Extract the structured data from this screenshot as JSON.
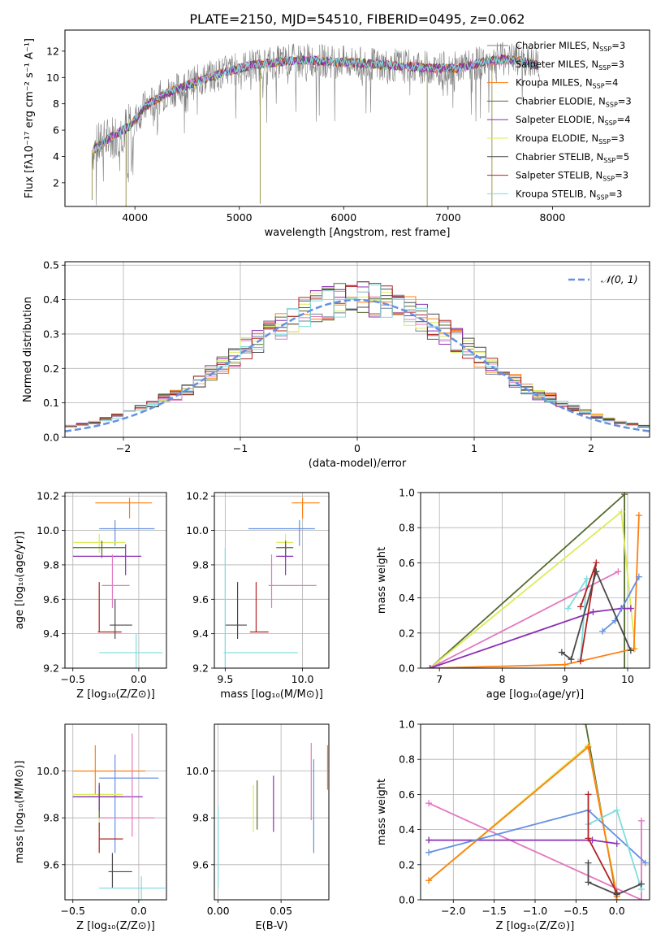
{
  "figure_title": "PLATE=2150, MJD=54510, FIBERID=0495, z=0.062",
  "colors": [
    "#708090",
    "#e377c2",
    "#ff7f0e",
    "#556b2f",
    "#8b2fb4",
    "#dceb5a",
    "#4a4a4a",
    "#b22222",
    "#7fdcdf",
    "#6490e4"
  ],
  "chart_data": [
    {
      "id": "spectrum",
      "type": "line",
      "xlabel": "wavelength [Angstrom, rest frame]",
      "ylabel": "Flux [fλ10⁻¹⁷ erg cm⁻² s⁻¹ A⁻¹]",
      "xlim": [
        3330,
        8930
      ],
      "ylim": [
        0.2,
        13.6
      ],
      "xticks": [
        4000,
        5000,
        6000,
        7000,
        8000
      ],
      "yticks": [
        2,
        4,
        6,
        8,
        10,
        12
      ],
      "continuum_x": [
        3600,
        3800,
        3950,
        4100,
        4300,
        4500,
        4700,
        4900,
        5100,
        5300,
        5500,
        5700,
        5900,
        6100,
        6300,
        6500,
        6700,
        6900,
        7100,
        7300,
        7500,
        7700,
        7900
      ],
      "continuum_y": [
        4.5,
        5.6,
        6.3,
        7.8,
        8.8,
        9.4,
        10.0,
        10.5,
        10.9,
        11.1,
        11.3,
        11.3,
        11.2,
        11.1,
        11.0,
        10.9,
        10.8,
        10.7,
        10.7,
        11.1,
        11.4,
        11.3,
        10.8
      ],
      "legend": [
        {
          "label": "Chabrier MILES, N",
          "sub": "SSP",
          "val": "=3"
        },
        {
          "label": "Salpeter MILES, N",
          "sub": "SSP",
          "val": "=3"
        },
        {
          "label": "Kroupa MILES, N",
          "sub": "SSP",
          "val": "=4"
        },
        {
          "label": "Chabrier ELODIE, N",
          "sub": "SSP",
          "val": "=3"
        },
        {
          "label": "Salpeter ELODIE, N",
          "sub": "SSP",
          "val": "=4"
        },
        {
          "label": "Kroupa ELODIE, N",
          "sub": "SSP",
          "val": "=3"
        },
        {
          "label": "Chabrier STELIB, N",
          "sub": "SSP",
          "val": "=5"
        },
        {
          "label": "Salpeter STELIB, N",
          "sub": "SSP",
          "val": "=3"
        },
        {
          "label": "Kroupa STELIB, N",
          "sub": "SSP",
          "val": "=3"
        }
      ],
      "legend_position": "right"
    },
    {
      "id": "residuals",
      "type": "line",
      "xlabel": "(data-model)/error",
      "ylabel": "Normed distribution",
      "xlim": [
        -2.5,
        2.5
      ],
      "ylim": [
        0,
        0.51
      ],
      "xticks": [
        -2,
        -1,
        0,
        1,
        2
      ],
      "xticklabels": [
        "−2",
        "−1",
        "0",
        "1",
        "2"
      ],
      "yticks": [
        0,
        0.1,
        0.2,
        0.3,
        0.4,
        0.5
      ],
      "yticklabels": [
        "0.0",
        "0.1",
        "0.2",
        "0.3",
        "0.4",
        "0.5"
      ],
      "legend": [
        {
          "label": "𝒩(0, 1)"
        }
      ],
      "legend_position": "top-right",
      "grid": true
    },
    {
      "id": "z_age",
      "type": "scatter",
      "xlabel": "Z [log₁₀(Z/Z⊙)]",
      "ylabel": "age  [log₁₀(age/yr)]",
      "xlim": [
        -0.56,
        0.21
      ],
      "ylim": [
        9.2,
        10.22
      ],
      "xticks": [
        -0.5,
        0
      ],
      "xticklabels": [
        "−0.5",
        "0.0"
      ],
      "yticks": [
        9.2,
        9.4,
        9.6,
        9.8,
        10.0,
        10.2
      ],
      "yticklabels": [
        "9.2",
        "9.4",
        "9.6",
        "9.8",
        "10.0",
        "10.2"
      ],
      "points": [
        {
          "c": 2,
          "x": -0.07,
          "y": 10.16,
          "xe": [
            -0.33,
            0.1
          ],
          "ye": [
            10.07,
            10.19
          ]
        },
        {
          "c": 9,
          "x": -0.18,
          "y": 10.01,
          "xe": [
            -0.3,
            0.12
          ],
          "ye": [
            9.91,
            10.06
          ]
        },
        {
          "c": 5,
          "x": -0.3,
          "y": 9.93,
          "xe": [
            -0.5,
            -0.1
          ],
          "ye": [
            9.87,
            9.98
          ]
        },
        {
          "c": 3,
          "x": -0.28,
          "y": 9.9,
          "xe": [
            -0.5,
            -0.1
          ],
          "ye": [
            9.84,
            9.94
          ]
        },
        {
          "c": 4,
          "x": -0.1,
          "y": 9.85,
          "xe": [
            -0.5,
            0.02
          ],
          "ye": [
            9.74,
            9.92
          ]
        },
        {
          "c": 1,
          "x": -0.2,
          "y": 9.68,
          "xe": [
            -0.28,
            -0.07
          ],
          "ye": [
            9.55,
            9.86
          ]
        },
        {
          "c": 7,
          "x": -0.3,
          "y": 9.41,
          "xe": [
            -0.31,
            -0.13
          ],
          "ye": [
            9.41,
            9.7
          ]
        },
        {
          "c": 6,
          "x": -0.18,
          "y": 9.45,
          "xe": [
            -0.22,
            -0.05
          ],
          "ye": [
            9.37,
            9.6
          ]
        },
        {
          "c": 8,
          "x": -0.02,
          "y": 9.29,
          "xe": [
            -0.3,
            0.18
          ],
          "ye": [
            9.2,
            9.4
          ]
        }
      ]
    },
    {
      "id": "mass_age",
      "type": "scatter",
      "xlabel": "mass [log₁₀(M/M⊙)]",
      "ylabel": "",
      "xlim": [
        9.43,
        10.17
      ],
      "ylim": [
        9.2,
        10.22
      ],
      "xticks": [
        9.5,
        10
      ],
      "xticklabels": [
        "9.5",
        "10.0"
      ],
      "yticks": [
        9.2,
        9.4,
        9.6,
        9.8,
        10.0,
        10.2
      ],
      "yticklabels": [
        "9.2",
        "9.4",
        "9.6",
        "9.8",
        "10.0",
        "10.2"
      ],
      "points": [
        {
          "c": 2,
          "x": 10.0,
          "y": 10.16,
          "xe": [
            9.93,
            10.11
          ],
          "ye": [
            10.07,
            10.19
          ]
        },
        {
          "c": 9,
          "x": 9.98,
          "y": 10.01,
          "xe": [
            9.65,
            10.08
          ],
          "ye": [
            9.91,
            10.06
          ]
        },
        {
          "c": 5,
          "x": 9.89,
          "y": 9.93,
          "xe": [
            9.83,
            9.94
          ],
          "ye": [
            9.87,
            9.98
          ]
        },
        {
          "c": 3,
          "x": 9.89,
          "y": 9.9,
          "xe": [
            9.83,
            9.94
          ],
          "ye": [
            9.84,
            9.94
          ]
        },
        {
          "c": 4,
          "x": 9.89,
          "y": 9.85,
          "xe": [
            9.83,
            9.94
          ],
          "ye": [
            9.74,
            9.92
          ]
        },
        {
          "c": 1,
          "x": 9.8,
          "y": 9.68,
          "xe": [
            9.78,
            10.09
          ],
          "ye": [
            9.55,
            9.86
          ]
        },
        {
          "c": 7,
          "x": 9.7,
          "y": 9.41,
          "xe": [
            9.66,
            9.78
          ],
          "ye": [
            9.41,
            9.7
          ]
        },
        {
          "c": 6,
          "x": 9.58,
          "y": 9.45,
          "xe": [
            9.5,
            9.64
          ],
          "ye": [
            9.37,
            9.7
          ]
        },
        {
          "c": 8,
          "x": 9.5,
          "y": 9.29,
          "xe": [
            9.49,
            9.97
          ],
          "ye": [
            9.2,
            9.9
          ]
        }
      ]
    },
    {
      "id": "age_weight",
      "type": "line",
      "xlabel": "age  [log₁₀(age/yr)]",
      "ylabel": "mass weight",
      "xlim": [
        6.7,
        10.35
      ],
      "ylim": [
        0,
        1
      ],
      "xticks": [
        7,
        8,
        9,
        10
      ],
      "xticklabels": [
        "7",
        "8",
        "9",
        "10"
      ],
      "yticks": [
        0,
        0.2,
        0.4,
        0.6,
        0.8,
        1
      ],
      "yticklabels": [
        "0.0",
        "0.2",
        "0.4",
        "0.6",
        "0.8",
        "1.0"
      ],
      "series": [
        {
          "c": 3,
          "x": [
            6.85,
            9.95,
            9.95
          ],
          "y": [
            0.0,
            0.99,
            0.0
          ]
        },
        {
          "c": 5,
          "x": 6.85,
          "xs": [
            6.85,
            9.9,
            10.12
          ],
          "y": [
            0.0,
            0.89,
            0.11
          ]
        },
        {
          "c": 2,
          "x": [
            6.85,
            9.0,
            10.1,
            10.18
          ],
          "y": [
            0.0,
            0.02,
            0.11,
            0.87
          ]
        },
        {
          "c": 1,
          "x": [
            6.85,
            9.85
          ],
          "y": [
            0.0,
            0.55
          ]
        },
        {
          "c": 4,
          "x": [
            6.85,
            9.45,
            9.9,
            10.05
          ],
          "y": [
            0.0,
            0.32,
            0.34,
            0.34
          ]
        },
        {
          "c": 8,
          "x": [
            9.25,
            9.35,
            9.05
          ],
          "y": [
            0.05,
            0.51,
            0.34
          ]
        },
        {
          "c": 7,
          "x": [
            9.25,
            9.5,
            9.25
          ],
          "y": [
            0.04,
            0.6,
            0.35
          ]
        },
        {
          "c": 9,
          "x": [
            9.6,
            9.8,
            10.18
          ],
          "y": [
            0.21,
            0.27,
            0.52
          ]
        },
        {
          "c": 6,
          "x": [
            8.95,
            9.1,
            9.5,
            10.05
          ],
          "y": [
            0.09,
            0.05,
            0.55,
            0.1
          ]
        }
      ]
    },
    {
      "id": "z_mass",
      "type": "scatter",
      "xlabel": "Z [log₁₀(Z/Z⊙)]",
      "ylabel": "mass [log₁₀(M/M⊙)]",
      "xlim": [
        -0.56,
        0.21
      ],
      "ylim": [
        9.45,
        10.2
      ],
      "xticks": [
        -0.5,
        0
      ],
      "xticklabels": [
        "−0.5",
        "0.0"
      ],
      "yticks": [
        9.6,
        9.8,
        10.0
      ],
      "yticklabels": [
        "9.6",
        "9.8",
        "10.0"
      ],
      "points": [
        {
          "c": 2,
          "x": -0.33,
          "y": 10.0,
          "xe": [
            -0.5,
            0.05
          ],
          "ye": [
            9.9,
            10.11
          ]
        },
        {
          "c": 9,
          "x": -0.18,
          "y": 9.97,
          "xe": [
            -0.3,
            0.15
          ],
          "ye": [
            9.65,
            10.07
          ]
        },
        {
          "c": 5,
          "x": -0.3,
          "y": 9.9,
          "xe": [
            -0.5,
            -0.12
          ],
          "ye": [
            9.74,
            9.94
          ]
        },
        {
          "c": 3,
          "x": -0.3,
          "y": 9.89,
          "xe": [
            -0.5,
            -0.12
          ],
          "ye": [
            9.8,
            9.95
          ]
        },
        {
          "c": 4,
          "x": -0.3,
          "y": 9.89,
          "xe": [
            -0.5,
            0.03
          ],
          "ye": [
            9.83,
            9.94
          ]
        },
        {
          "c": 1,
          "x": -0.05,
          "y": 9.8,
          "xe": [
            -0.3,
            0.12
          ],
          "ye": [
            9.72,
            10.16
          ]
        },
        {
          "c": 7,
          "x": -0.3,
          "y": 9.71,
          "xe": [
            -0.3,
            -0.12
          ],
          "ye": [
            9.65,
            9.78
          ]
        },
        {
          "c": 6,
          "x": -0.2,
          "y": 9.57,
          "xe": [
            -0.23,
            -0.05
          ],
          "ye": [
            9.5,
            9.65
          ]
        },
        {
          "c": 8,
          "x": 0.02,
          "y": 9.5,
          "xe": [
            -0.3,
            0.2
          ],
          "ye": [
            9.45,
            9.55
          ]
        }
      ]
    },
    {
      "id": "ebv_mass",
      "type": "scatter",
      "xlabel": "E(B-V)",
      "ylabel": "",
      "xlim": [
        -0.003,
        0.088
      ],
      "ylim": [
        9.45,
        10.2
      ],
      "xticks": [
        0,
        0.05
      ],
      "xticklabels": [
        "0.00",
        "0.05"
      ],
      "yticks": [
        9.6,
        9.8,
        10.0
      ],
      "yticklabels": [
        "9.6",
        "9.8",
        "10.0"
      ],
      "points": [
        {
          "c": 8,
          "x": 0.0,
          "y": 9.65,
          "ye": [
            9.5,
            9.85
          ]
        },
        {
          "c": 5,
          "x": 0.028,
          "y": 9.84,
          "ye": [
            9.74,
            9.94
          ]
        },
        {
          "c": 3,
          "x": 0.031,
          "y": 9.83,
          "ye": [
            9.75,
            9.96
          ]
        },
        {
          "c": 4,
          "x": 0.044,
          "y": 9.86,
          "ye": [
            9.74,
            9.98
          ]
        },
        {
          "c": 1,
          "x": 0.074,
          "y": 9.95,
          "ye": [
            9.79,
            10.12
          ]
        },
        {
          "c": 9,
          "x": 0.076,
          "y": 9.87,
          "ye": [
            9.65,
            10.05
          ]
        },
        {
          "c": 2,
          "x": 0.087,
          "y": 10.0,
          "ye": [
            9.92,
            10.11
          ]
        }
      ]
    },
    {
      "id": "z_weight",
      "type": "line",
      "xlabel": "Z [log₁₀(Z/Z⊙)]",
      "ylabel": "mass weight",
      "xlim": [
        -2.4,
        0.4
      ],
      "ylim": [
        0,
        1
      ],
      "xticks": [
        -2,
        -1.5,
        -1,
        -0.5,
        0
      ],
      "xticklabels": [
        "−2.0",
        "−1.5",
        "−1.0",
        "−0.5",
        "0.0"
      ],
      "yticks": [
        0,
        0.2,
        0.4,
        0.6,
        0.8,
        1
      ],
      "yticklabels": [
        "0.0",
        "0.2",
        "0.4",
        "0.6",
        "0.8",
        "1.0"
      ],
      "series": [
        {
          "c": 3,
          "x": [
            -0.38,
            0.0
          ],
          "y": [
            1.0,
            0.0
          ]
        },
        {
          "c": 5,
          "x": [
            -2.3,
            -0.35,
            0.0
          ],
          "y": [
            0.11,
            0.88,
            0.03
          ]
        },
        {
          "c": 2,
          "x": [
            -2.3,
            -0.35,
            0.0
          ],
          "y": [
            0.11,
            0.87,
            0.02
          ]
        },
        {
          "c": 1,
          "x": [
            -2.3,
            0.3,
            0.3
          ],
          "y": [
            0.55,
            0.0,
            0.45
          ]
        },
        {
          "c": 4,
          "x": [
            -2.3,
            -0.3,
            0.0
          ],
          "y": [
            0.34,
            0.34,
            0.32
          ]
        },
        {
          "c": 9,
          "x": [
            -2.3,
            -0.35,
            0.35
          ],
          "y": [
            0.27,
            0.51,
            0.21
          ]
        },
        {
          "c": 8,
          "x": [
            -0.35,
            0.0,
            0.3
          ],
          "y": [
            0.43,
            0.51,
            0.06
          ]
        },
        {
          "c": 7,
          "x": [
            -0.35,
            -0.35,
            0.0
          ],
          "y": [
            0.6,
            0.35,
            0.04
          ]
        },
        {
          "c": 6,
          "x": [
            -0.35,
            -0.35,
            0.0,
            0.3
          ],
          "y": [
            0.21,
            0.1,
            0.03,
            0.09
          ]
        }
      ]
    }
  ]
}
